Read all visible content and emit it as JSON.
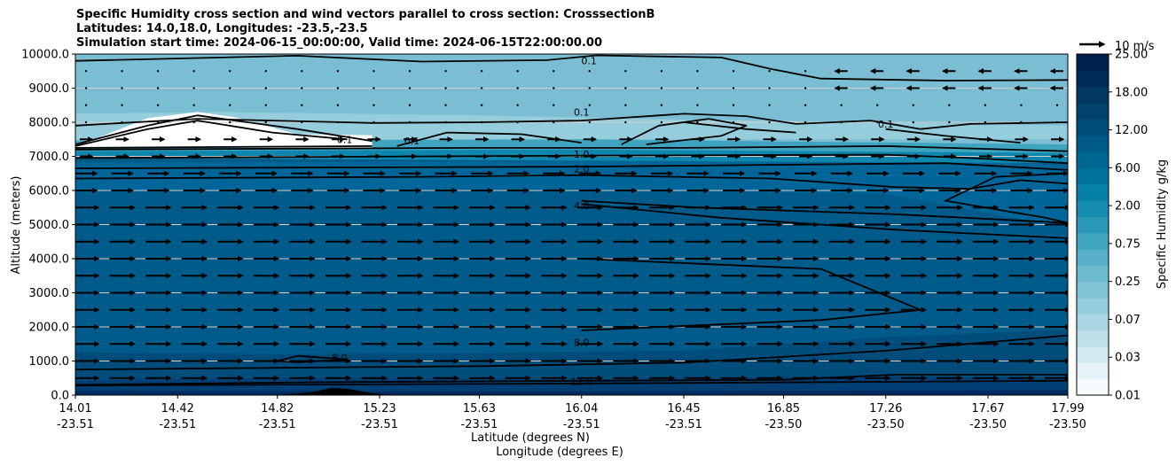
{
  "chart_data": {
    "type": "contour",
    "title_lines": [
      "Specific Humidity cross section and wind vectors parallel to cross section: CrosssectionB",
      "Latitudes: 14.0,18.0, Longitudes: -23.5,-23.5",
      "Simulation start time: 2024-06-15_00:00:00, Valid time: 2024-06-15T22:00:00.00"
    ],
    "ylabel": "Altitude (meters)",
    "xlabel_lat": "Latitude (degrees N)",
    "xlabel_lon": "Longitude (degrees E)",
    "ylim": [
      0,
      10000
    ],
    "y_ticks": [
      "0.0",
      "1000.0",
      "2000.0",
      "3000.0",
      "4000.0",
      "5000.0",
      "6000.0",
      "7000.0",
      "8000.0",
      "9000.0",
      "10000.0"
    ],
    "x_ticks": [
      {
        "lat": "14.01",
        "lon": "-23.51"
      },
      {
        "lat": "14.42",
        "lon": "-23.51"
      },
      {
        "lat": "14.82",
        "lon": "-23.51"
      },
      {
        "lat": "15.23",
        "lon": "-23.51"
      },
      {
        "lat": "15.63",
        "lon": "-23.51"
      },
      {
        "lat": "16.04",
        "lon": "-23.51"
      },
      {
        "lat": "16.45",
        "lon": "-23.51"
      },
      {
        "lat": "16.85",
        "lon": "-23.50"
      },
      {
        "lat": "17.26",
        "lon": "-23.50"
      },
      {
        "lat": "17.67",
        "lon": "-23.50"
      },
      {
        "lat": "17.99",
        "lon": "-23.50"
      }
    ],
    "colorbar": {
      "label": "Specific Humidity g/kg",
      "tick_labels": [
        "0.01",
        "0.03",
        "0.07",
        "0.25",
        "0.75",
        "2.00",
        "6.00",
        "12.00",
        "18.00",
        "25.00"
      ],
      "colors": [
        "#f7fbfd",
        "#e5f2f6",
        "#d2e9f0",
        "#bedfea",
        "#aad6e3",
        "#96cddd",
        "#82c3d6",
        "#6ebacf",
        "#57afc8",
        "#3fa4c0",
        "#2b98b8",
        "#168caf",
        "#0680a7",
        "#00739d",
        "#006692",
        "#005a86",
        "#004e7a",
        "#00426e",
        "#003763",
        "#002b58",
        "#00204d"
      ]
    },
    "contour_labels": [
      {
        "value": "0.1",
        "lat": 16.07,
        "alt": 9800
      },
      {
        "value": "0.1",
        "lat": 16.04,
        "alt": 8300
      },
      {
        "value": "0.1",
        "lat": 17.26,
        "alt": 7950
      },
      {
        "value": "0.1",
        "lat": 15.09,
        "alt": 7500
      },
      {
        "value": "0.1",
        "lat": 15.36,
        "alt": 7450
      },
      {
        "value": "1.0",
        "lat": 16.04,
        "alt": 7070
      },
      {
        "value": "2.0",
        "lat": 16.04,
        "alt": 6640
      },
      {
        "value": "4.0",
        "lat": 16.04,
        "alt": 5560
      },
      {
        "value": "8.0",
        "lat": 16.04,
        "alt": 1550
      },
      {
        "value": "8.0",
        "lat": 15.07,
        "alt": 1100
      },
      {
        "value": "12.0",
        "lat": 16.04,
        "alt": 400
      }
    ],
    "wind": {
      "reference_label": "10 m/s",
      "columns": 28,
      "levels_alt": [
        500,
        1000,
        1500,
        2000,
        2500,
        3000,
        3500,
        4000,
        4500,
        5000,
        5500,
        6000,
        6500,
        7000,
        7500,
        8000,
        8500,
        9000,
        9500
      ]
    },
    "grid": true
  }
}
